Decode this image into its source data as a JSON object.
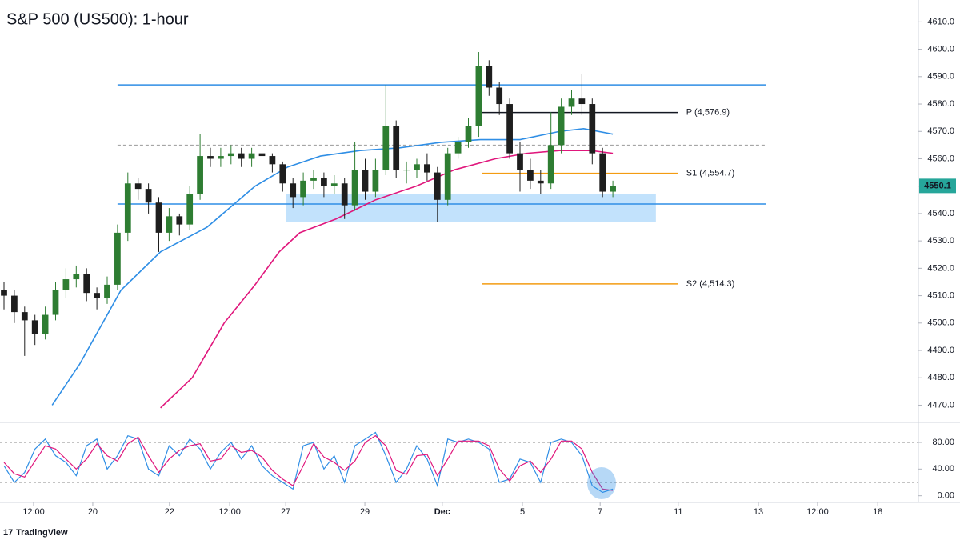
{
  "title": "S&P 500 (US500): 1-hour",
  "footer": "TradingView",
  "chart_data": [
    {
      "type": "candlestick",
      "xlim": [
        0,
        266
      ],
      "ylim": [
        4464,
        4618
      ],
      "yticks": [
        {
          "value": 4470,
          "label": "4470.0"
        },
        {
          "value": 4480,
          "label": "4480.0"
        },
        {
          "value": 4490,
          "label": "4490.0"
        },
        {
          "value": 4500,
          "label": "4500.0"
        },
        {
          "value": 4510,
          "label": "4510.0"
        },
        {
          "value": 4520,
          "label": "4520.0"
        },
        {
          "value": 4530,
          "label": "4530.0"
        },
        {
          "value": 4540,
          "label": "4540.0"
        },
        {
          "value": 4550,
          "label": "4550.0"
        },
        {
          "value": 4560,
          "label": "4560.0"
        },
        {
          "value": 4570,
          "label": "4570.0"
        },
        {
          "value": 4580,
          "label": "4580.0"
        },
        {
          "value": 4590,
          "label": "4590.0"
        },
        {
          "value": 4600,
          "label": "4600.0"
        },
        {
          "value": 4610,
          "label": "4610.0"
        }
      ],
      "up_color": "#2e7d32",
      "down_color": "#1e1e1e",
      "x": [
        0,
        3,
        6,
        9,
        12,
        15,
        18,
        21,
        24,
        27,
        30,
        33,
        36,
        39,
        42,
        45,
        48,
        51,
        54,
        57,
        60,
        63,
        66,
        69,
        72,
        75,
        78,
        81,
        84,
        87,
        90,
        93,
        96,
        99,
        102,
        105,
        108,
        111,
        114,
        117,
        120,
        123,
        126,
        129,
        132,
        135,
        138,
        141,
        144,
        147,
        150,
        153,
        156,
        159,
        162,
        165,
        168,
        171,
        174,
        177
      ],
      "open": [
        4512,
        4510,
        4504,
        4501,
        4496,
        4503,
        4512,
        4516,
        4518,
        4511,
        4509,
        4514,
        4533,
        4551,
        4549,
        4544,
        4533,
        4539,
        4536,
        4547,
        4561,
        4560,
        4561,
        4562,
        4560,
        4562,
        4561,
        4558,
        4551,
        4546,
        4552,
        4553,
        4550,
        4551,
        4543,
        4556,
        4548,
        4556,
        4572,
        4556,
        4556,
        4558,
        4555,
        4545,
        4562,
        4566,
        4572,
        4594,
        4586,
        4580,
        4562,
        4556,
        4552,
        4551,
        4565,
        4579,
        4582,
        4580,
        4562,
        4548
      ],
      "high": [
        4515,
        4512,
        4506,
        4503,
        4506,
        4515,
        4520,
        4521,
        4520,
        4513,
        4517,
        4536,
        4555,
        4553,
        4551,
        4546,
        4542,
        4540,
        4550,
        4569,
        4564,
        4564,
        4565,
        4564,
        4564,
        4564,
        4562,
        4559,
        4553,
        4555,
        4556,
        4555,
        4554,
        4553,
        4566,
        4560,
        4560,
        4587,
        4574,
        4559,
        4560,
        4562,
        4557,
        4564,
        4568,
        4575,
        4599,
        4596,
        4588,
        4582,
        4566,
        4560,
        4556,
        4577,
        4582,
        4585,
        4591,
        4582,
        4564,
        4552
      ],
      "low": [
        4505,
        4500,
        4488,
        4492,
        4494,
        4501,
        4509,
        4513,
        4508,
        4505,
        4507,
        4512,
        4530,
        4545,
        4540,
        4526,
        4530,
        4532,
        4534,
        4545,
        4557,
        4557,
        4558,
        4557,
        4557,
        4558,
        4555,
        4548,
        4542,
        4543,
        4549,
        4546,
        4547,
        4538,
        4541,
        4545,
        4546,
        4554,
        4553,
        4551,
        4553,
        4552,
        4537,
        4543,
        4560,
        4564,
        4568,
        4583,
        4576,
        4560,
        4548,
        4549,
        4547,
        4549,
        4562,
        4576,
        4576,
        4558,
        4546,
        4546
      ],
      "close": [
        4510,
        4504,
        4501,
        4496,
        4503,
        4512,
        4516,
        4518,
        4511,
        4509,
        4514,
        4533,
        4551,
        4549,
        4544,
        4533,
        4539,
        4536,
        4547,
        4561,
        4560,
        4561,
        4562,
        4560,
        4562,
        4561,
        4558,
        4551,
        4546,
        4552,
        4553,
        4550,
        4551,
        4543,
        4556,
        4548,
        4556,
        4572,
        4556,
        4556,
        4558,
        4555,
        4545,
        4562,
        4566,
        4572,
        4594,
        4586,
        4580,
        4562,
        4556,
        4552,
        4551,
        4565,
        4579,
        4582,
        4580,
        4562,
        4548,
        4550.1
      ],
      "last_price": 4550.1,
      "last_price_color": "#26a69a",
      "ma_lines": [
        {
          "color": "#2f8ee5",
          "x": [
            14,
            22,
            34,
            45.5,
            59,
            73,
            82.5,
            92,
            103.5,
            115,
            127,
            138.5,
            150,
            161.5,
            168.5,
            177
          ],
          "values": [
            4470,
            4485,
            4512,
            4526,
            4535,
            4550,
            4557,
            4561,
            4563,
            4564,
            4566,
            4567,
            4567,
            4570,
            4571,
            4569
          ]
        },
        {
          "color": "#e0177c",
          "x": [
            45.5,
            54.7,
            64,
            73,
            80,
            86,
            96.5,
            108,
            119.8,
            131,
            142.8,
            152,
            161.5,
            170.7,
            177
          ],
          "values": [
            4469,
            4480,
            4500,
            4514,
            4526,
            4533,
            4538,
            4545,
            4550,
            4556,
            4560,
            4562,
            4563,
            4563,
            4562
          ]
        }
      ],
      "zones": [
        {
          "ylim": [
            4537,
            4547
          ],
          "xlim": [
            82,
            189.5
          ],
          "color": "#90caf9"
        }
      ],
      "levels": [
        {
          "value": 4587,
          "xlim": [
            33,
            221.4
          ],
          "color": "#2f8ee5",
          "dashed": false
        },
        {
          "value": 4543.5,
          "xlim": [
            33,
            221.4
          ],
          "color": "#2f8ee5",
          "dashed": false
        },
        {
          "value": 4565,
          "xlim": [
            33,
            221.4
          ],
          "color": "#999999",
          "dashed": true
        },
        {
          "value": 4576.9,
          "xlim": [
            139,
            196
          ],
          "color": "#131722",
          "dashed": false,
          "label": "P (4,576.9)"
        },
        {
          "value": 4554.7,
          "xlim": [
            139,
            196
          ],
          "color": "#f39c12",
          "dashed": false,
          "label": "S1 (4,554.7)"
        },
        {
          "value": 4514.3,
          "xlim": [
            139,
            196
          ],
          "color": "#f39c12",
          "dashed": false,
          "label": "S2 (4,514.3)"
        }
      ]
    },
    {
      "type": "line",
      "xlim": [
        0,
        266
      ],
      "ylim": [
        -10,
        110
      ],
      "yticks": [
        {
          "value": 0,
          "label": "0.00"
        },
        {
          "value": 40,
          "label": "40.00"
        },
        {
          "value": 80,
          "label": "80.00"
        }
      ],
      "bands": [
        20,
        80
      ],
      "xticks": [
        {
          "value": 8.6,
          "label": "12:00"
        },
        {
          "value": 25.8,
          "label": "20"
        },
        {
          "value": 48.1,
          "label": "22"
        },
        {
          "value": 65.6,
          "label": "12:00"
        },
        {
          "value": 81.9,
          "label": "27"
        },
        {
          "value": 104.9,
          "label": "29"
        },
        {
          "value": 127.4,
          "label": "Dec"
        },
        {
          "value": 150.7,
          "label": "5"
        },
        {
          "value": 173.3,
          "label": "7"
        },
        {
          "value": 196,
          "label": "11"
        },
        {
          "value": 219.3,
          "label": "13"
        },
        {
          "value": 236.5,
          "label": "12:00"
        },
        {
          "value": 254,
          "label": "18"
        }
      ],
      "x": [
        0,
        3,
        6,
        9,
        12,
        15,
        18,
        21,
        24,
        27,
        30,
        33,
        36,
        39,
        42,
        45,
        48,
        51,
        54,
        57,
        60,
        63,
        66,
        69,
        72,
        75,
        78,
        81,
        84,
        87,
        90,
        93,
        96,
        99,
        102,
        105,
        108,
        111,
        114,
        117,
        120,
        123,
        126,
        129,
        132,
        135,
        138,
        141,
        144,
        147,
        150,
        153,
        156,
        159,
        162,
        165,
        168,
        171,
        174,
        177
      ],
      "series": [
        {
          "color": "#2f8ee5",
          "values": [
            45,
            20,
            35,
            70,
            85,
            60,
            50,
            30,
            75,
            85,
            40,
            60,
            90,
            85,
            40,
            30,
            75,
            60,
            85,
            70,
            40,
            65,
            80,
            55,
            75,
            45,
            30,
            20,
            10,
            75,
            80,
            40,
            60,
            20,
            75,
            85,
            95,
            60,
            20,
            40,
            75,
            55,
            15,
            85,
            80,
            85,
            80,
            70,
            20,
            25,
            55,
            50,
            20,
            80,
            85,
            80,
            60,
            15,
            5,
            10
          ]
        },
        {
          "color": "#e0177c",
          "values": [
            50,
            33,
            28,
            52,
            75,
            70,
            55,
            40,
            55,
            78,
            60,
            52,
            78,
            88,
            60,
            35,
            55,
            68,
            75,
            78,
            52,
            55,
            75,
            65,
            68,
            58,
            38,
            25,
            15,
            45,
            78,
            58,
            50,
            38,
            52,
            80,
            90,
            75,
            38,
            32,
            60,
            62,
            30,
            55,
            82,
            82,
            82,
            75,
            40,
            22,
            45,
            52,
            35,
            55,
            82,
            82,
            70,
            35,
            10,
            8
          ]
        }
      ]
    }
  ]
}
